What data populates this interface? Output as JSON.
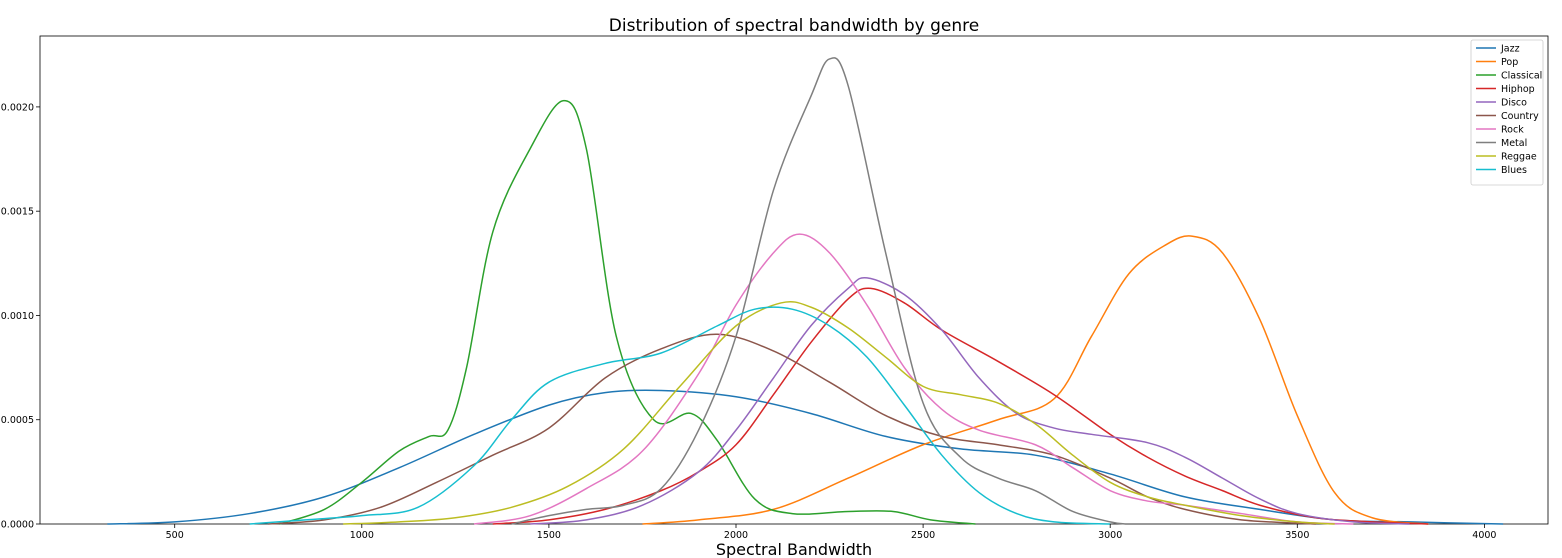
{
  "chart_data": {
    "type": "line",
    "title": "Distribution of spectral bandwidth by genre",
    "xlabel": "Spectral Bandwidth",
    "ylabel": "",
    "xlim": [
      140,
      4170
    ],
    "ylim": [
      0,
      0.00234
    ],
    "x_ticks": [
      500,
      1000,
      1500,
      2000,
      2500,
      3000,
      3500,
      4000
    ],
    "y_ticks": [
      0.0,
      0.0005,
      0.001,
      0.0015,
      0.002
    ],
    "y_tick_labels": [
      "0.0000",
      "0.0005",
      "0.0010",
      "0.0015",
      "0.0020"
    ],
    "grid": false,
    "legend_position": "top-right",
    "series": [
      {
        "name": "Jazz",
        "color": "#1f77b4",
        "points": [
          [
            320,
            0
          ],
          [
            500,
            1e-05
          ],
          [
            700,
            5e-05
          ],
          [
            900,
            0.00013
          ],
          [
            1100,
            0.00027
          ],
          [
            1300,
            0.00043
          ],
          [
            1500,
            0.00057
          ],
          [
            1650,
            0.00063
          ],
          [
            1800,
            0.00064
          ],
          [
            2000,
            0.00061
          ],
          [
            2200,
            0.00053
          ],
          [
            2400,
            0.00042
          ],
          [
            2600,
            0.00036
          ],
          [
            2800,
            0.00033
          ],
          [
            3000,
            0.00024
          ],
          [
            3200,
            0.00013
          ],
          [
            3400,
            7e-05
          ],
          [
            3600,
            2e-05
          ],
          [
            3800,
            1e-05
          ],
          [
            4050,
            0
          ]
        ]
      },
      {
        "name": "Pop",
        "color": "#ff7f0e",
        "points": [
          [
            1750,
            0
          ],
          [
            1900,
            2e-05
          ],
          [
            2100,
            7e-05
          ],
          [
            2300,
            0.00022
          ],
          [
            2500,
            0.00038
          ],
          [
            2700,
            0.0005
          ],
          [
            2850,
            0.0006
          ],
          [
            2950,
            0.0009
          ],
          [
            3050,
            0.0012
          ],
          [
            3150,
            0.00134
          ],
          [
            3220,
            0.00138
          ],
          [
            3300,
            0.0013
          ],
          [
            3400,
            0.00098
          ],
          [
            3500,
            0.00052
          ],
          [
            3600,
            0.00015
          ],
          [
            3700,
            3e-05
          ],
          [
            3850,
            0
          ]
        ]
      },
      {
        "name": "Classical",
        "color": "#2ca02c",
        "points": [
          [
            780,
            0
          ],
          [
            900,
            7e-05
          ],
          [
            1000,
            0.0002
          ],
          [
            1100,
            0.00035
          ],
          [
            1180,
            0.00042
          ],
          [
            1230,
            0.00045
          ],
          [
            1280,
            0.00075
          ],
          [
            1350,
            0.0014
          ],
          [
            1450,
            0.0018
          ],
          [
            1540,
            0.00203
          ],
          [
            1600,
            0.0018
          ],
          [
            1680,
            0.0009
          ],
          [
            1780,
            0.0005
          ],
          [
            1880,
            0.00053
          ],
          [
            1950,
            0.0004
          ],
          [
            2050,
            0.00012
          ],
          [
            2150,
            5e-05
          ],
          [
            2300,
            6e-05
          ],
          [
            2420,
            6e-05
          ],
          [
            2520,
            2e-05
          ],
          [
            2640,
            0
          ]
        ]
      },
      {
        "name": "Hiphop",
        "color": "#d62728",
        "points": [
          [
            1350,
            0
          ],
          [
            1500,
            2e-05
          ],
          [
            1650,
            7e-05
          ],
          [
            1800,
            0.00016
          ],
          [
            1900,
            0.00025
          ],
          [
            2000,
            0.00038
          ],
          [
            2100,
            0.00062
          ],
          [
            2200,
            0.00087
          ],
          [
            2300,
            0.00108
          ],
          [
            2360,
            0.00113
          ],
          [
            2450,
            0.00106
          ],
          [
            2550,
            0.00093
          ],
          [
            2700,
            0.00078
          ],
          [
            2850,
            0.00062
          ],
          [
            3000,
            0.00043
          ],
          [
            3100,
            0.00032
          ],
          [
            3200,
            0.00023
          ],
          [
            3300,
            0.00016
          ],
          [
            3400,
            9e-05
          ],
          [
            3550,
            3e-05
          ],
          [
            3700,
            1e-05
          ],
          [
            3850,
            0
          ]
        ]
      },
      {
        "name": "Disco",
        "color": "#9467bd",
        "points": [
          [
            1450,
            0
          ],
          [
            1600,
            2e-05
          ],
          [
            1750,
            9e-05
          ],
          [
            1900,
            0.00025
          ],
          [
            2000,
            0.00045
          ],
          [
            2100,
            0.0007
          ],
          [
            2200,
            0.00095
          ],
          [
            2300,
            0.00113
          ],
          [
            2350,
            0.00118
          ],
          [
            2450,
            0.0011
          ],
          [
            2550,
            0.00093
          ],
          [
            2650,
            0.0007
          ],
          [
            2750,
            0.00053
          ],
          [
            2850,
            0.00046
          ],
          [
            2950,
            0.00043
          ],
          [
            3100,
            0.00039
          ],
          [
            3200,
            0.00032
          ],
          [
            3300,
            0.00022
          ],
          [
            3400,
            0.00012
          ],
          [
            3500,
            5e-05
          ],
          [
            3650,
            1e-05
          ],
          [
            3800,
            0
          ]
        ]
      },
      {
        "name": "Country",
        "color": "#8c564b",
        "points": [
          [
            750,
            0
          ],
          [
            900,
            2e-05
          ],
          [
            1050,
            8e-05
          ],
          [
            1200,
            0.0002
          ],
          [
            1350,
            0.00033
          ],
          [
            1500,
            0.00046
          ],
          [
            1650,
            0.0007
          ],
          [
            1800,
            0.00084
          ],
          [
            1950,
            0.00091
          ],
          [
            2100,
            0.00083
          ],
          [
            2250,
            0.00068
          ],
          [
            2400,
            0.00052
          ],
          [
            2550,
            0.00042
          ],
          [
            2700,
            0.00038
          ],
          [
            2850,
            0.00033
          ],
          [
            3000,
            0.00022
          ],
          [
            3100,
            0.00013
          ],
          [
            3200,
            7e-05
          ],
          [
            3350,
            2e-05
          ],
          [
            3550,
            0
          ]
        ]
      },
      {
        "name": "Rock",
        "color": "#e377c2",
        "points": [
          [
            1300,
            0
          ],
          [
            1450,
            4e-05
          ],
          [
            1600,
            0.00017
          ],
          [
            1750,
            0.00035
          ],
          [
            1900,
            0.00072
          ],
          [
            2000,
            0.00105
          ],
          [
            2100,
            0.0013
          ],
          [
            2170,
            0.00139
          ],
          [
            2250,
            0.0013
          ],
          [
            2350,
            0.00105
          ],
          [
            2450,
            0.00075
          ],
          [
            2550,
            0.00055
          ],
          [
            2650,
            0.00045
          ],
          [
            2800,
            0.00038
          ],
          [
            2900,
            0.00027
          ],
          [
            3000,
            0.00016
          ],
          [
            3100,
            0.00011
          ],
          [
            3200,
            9e-05
          ],
          [
            3350,
            5e-05
          ],
          [
            3500,
            1e-05
          ],
          [
            3650,
            0
          ]
        ]
      },
      {
        "name": "Metal",
        "color": "#7f7f7f",
        "points": [
          [
            1400,
            0
          ],
          [
            1500,
            4e-05
          ],
          [
            1600,
            7e-05
          ],
          [
            1700,
            9e-05
          ],
          [
            1800,
            0.00017
          ],
          [
            1900,
            0.00045
          ],
          [
            2000,
            0.0009
          ],
          [
            2100,
            0.0016
          ],
          [
            2200,
            0.00205
          ],
          [
            2250,
            0.00223
          ],
          [
            2300,
            0.0021
          ],
          [
            2400,
            0.0013
          ],
          [
            2500,
            0.00058
          ],
          [
            2600,
            0.00032
          ],
          [
            2700,
            0.00022
          ],
          [
            2800,
            0.00016
          ],
          [
            2900,
            6e-05
          ],
          [
            3000,
            1e-05
          ],
          [
            3040,
            0
          ]
        ]
      },
      {
        "name": "Reggae",
        "color": "#bcbd22",
        "points": [
          [
            950,
            0
          ],
          [
            1100,
            1e-05
          ],
          [
            1250,
            3e-05
          ],
          [
            1400,
            8e-05
          ],
          [
            1550,
            0.00018
          ],
          [
            1700,
            0.00036
          ],
          [
            1850,
            0.00066
          ],
          [
            2000,
            0.00095
          ],
          [
            2120,
            0.00106
          ],
          [
            2200,
            0.00104
          ],
          [
            2300,
            0.00094
          ],
          [
            2400,
            0.0008
          ],
          [
            2500,
            0.00066
          ],
          [
            2600,
            0.00062
          ],
          [
            2700,
            0.00058
          ],
          [
            2800,
            0.00048
          ],
          [
            2900,
            0.00033
          ],
          [
            3000,
            0.0002
          ],
          [
            3100,
            0.00013
          ],
          [
            3200,
            9e-05
          ],
          [
            3350,
            4e-05
          ],
          [
            3500,
            1e-05
          ],
          [
            3600,
            0
          ]
        ]
      },
      {
        "name": "Blues",
        "color": "#17becf",
        "points": [
          [
            700,
            0
          ],
          [
            850,
            2e-05
          ],
          [
            1000,
            4e-05
          ],
          [
            1150,
            8e-05
          ],
          [
            1300,
            0.00028
          ],
          [
            1400,
            0.0005
          ],
          [
            1500,
            0.00068
          ],
          [
            1650,
            0.00077
          ],
          [
            1800,
            0.00082
          ],
          [
            1950,
            0.00095
          ],
          [
            2050,
            0.00103
          ],
          [
            2150,
            0.00103
          ],
          [
            2250,
            0.00095
          ],
          [
            2350,
            0.0008
          ],
          [
            2450,
            0.00057
          ],
          [
            2550,
            0.00033
          ],
          [
            2650,
            0.00015
          ],
          [
            2750,
            5e-05
          ],
          [
            2850,
            1e-05
          ],
          [
            3000,
            0
          ]
        ]
      }
    ]
  }
}
